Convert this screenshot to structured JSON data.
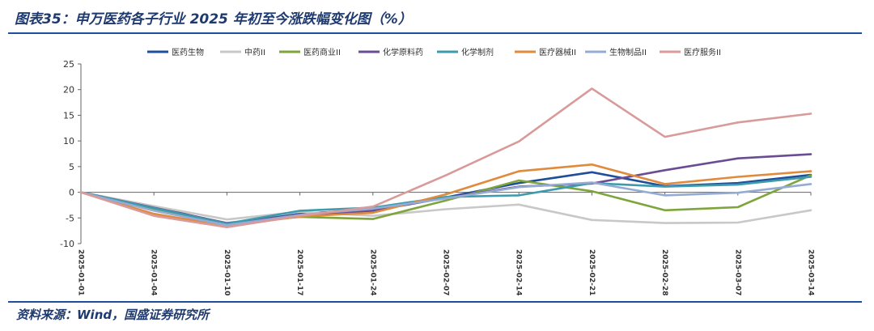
{
  "title": "图表35：申万医药各子行业 2025 年初至今涨跌幅变化图（%）",
  "source": "资料来源：Wind，国盛证券研究所",
  "chart_data": {
    "type": "line",
    "title": "",
    "xlabel": "",
    "ylabel": "",
    "ylim": [
      -10,
      25
    ],
    "yticks": [
      -10,
      -5,
      0,
      5,
      10,
      15,
      20,
      25
    ],
    "legend_position": "top",
    "grid": false,
    "x": [
      "2025-01-01",
      "2025-01-04",
      "2025-01-10",
      "2025-01-17",
      "2025-01-24",
      "2025-02-07",
      "2025-02-14",
      "2025-02-21",
      "2025-02-28",
      "2025-03-07",
      "2025-03-14"
    ],
    "series": [
      {
        "name": "医药生物",
        "color": "#1f4e9a",
        "values": [
          0,
          -2.8,
          -6.2,
          -4.2,
          -3.4,
          -1.0,
          1.8,
          3.9,
          1.2,
          1.8,
          3.4
        ]
      },
      {
        "name": "中药II",
        "color": "#c8c8c8",
        "values": [
          0,
          -2.7,
          -5.3,
          -3.8,
          -4.6,
          -3.3,
          -2.4,
          -5.4,
          -6.0,
          -5.9,
          -3.5
        ]
      },
      {
        "name": "医药商业II",
        "color": "#7ea53c",
        "values": [
          0,
          -3.3,
          -6.2,
          -4.8,
          -5.2,
          -1.6,
          2.3,
          0.2,
          -3.5,
          -2.9,
          3.3
        ]
      },
      {
        "name": "化学原料药",
        "color": "#6a4c93",
        "values": [
          0,
          -3.0,
          -6.0,
          -4.4,
          -3.6,
          -1.1,
          1.1,
          1.7,
          4.3,
          6.6,
          7.4
        ]
      },
      {
        "name": "化学制剂",
        "color": "#3d9bad",
        "values": [
          0,
          -3.1,
          -6.1,
          -3.6,
          -3.0,
          -0.9,
          -0.6,
          1.8,
          1.1,
          1.5,
          3.0
        ]
      },
      {
        "name": "医疗器械II",
        "color": "#e08a3c",
        "values": [
          0,
          -4.2,
          -6.6,
          -4.7,
          -4.0,
          -0.4,
          4.1,
          5.4,
          1.6,
          3.0,
          4.1
        ]
      },
      {
        "name": "生物制品II",
        "color": "#94acd4",
        "values": [
          0,
          -3.6,
          -6.4,
          -4.4,
          -3.2,
          -1.2,
          1.0,
          1.9,
          -0.6,
          -0.1,
          1.6
        ]
      },
      {
        "name": "医疗服务II",
        "color": "#d99a9a",
        "values": [
          0,
          -4.6,
          -6.8,
          -4.6,
          -2.8,
          3.3,
          9.9,
          20.2,
          10.8,
          13.6,
          15.3
        ]
      }
    ]
  }
}
